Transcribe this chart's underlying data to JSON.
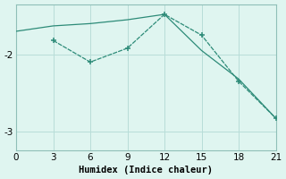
{
  "line1_x": [
    0,
    3,
    6,
    9,
    12,
    15,
    18,
    21
  ],
  "line1_y": [
    -1.7,
    -1.63,
    -1.6,
    -1.55,
    -1.48,
    -1.95,
    -2.32,
    -2.83
  ],
  "line2_x": [
    3,
    6,
    9,
    12,
    15,
    18,
    21
  ],
  "line2_y": [
    -1.82,
    -2.1,
    -1.92,
    -1.48,
    -1.75,
    -2.35,
    -2.83
  ],
  "line_color": "#2d8b78",
  "bg_color": "#dff5f0",
  "grid_color": "#b8ddd8",
  "spine_color": "#8fbfb8",
  "xlabel": "Humidex (Indice chaleur)",
  "xlim": [
    0,
    21
  ],
  "ylim": [
    -3.25,
    -1.35
  ],
  "xticks": [
    0,
    3,
    6,
    9,
    12,
    15,
    18,
    21
  ],
  "yticks": [
    -3,
    -2
  ],
  "xlabel_fontsize": 7.5,
  "tick_fontsize": 7.5
}
